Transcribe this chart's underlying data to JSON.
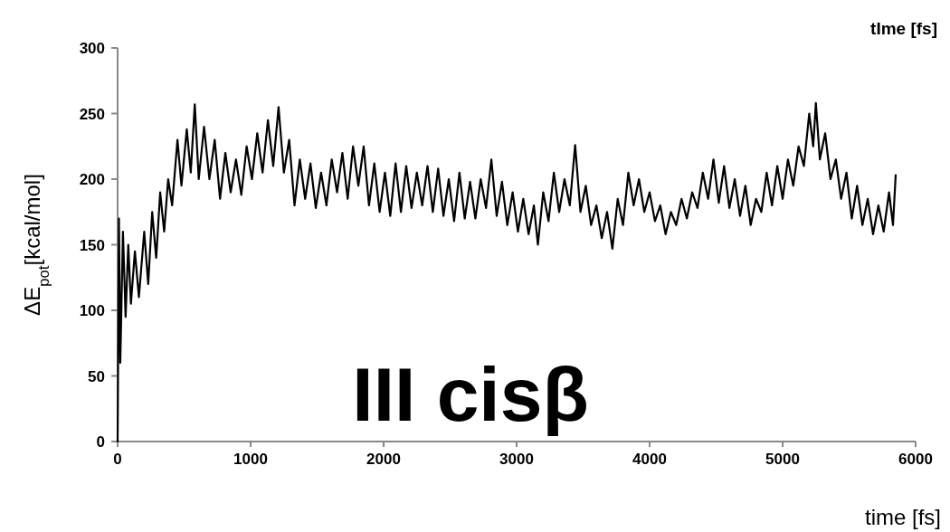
{
  "chart_data": {
    "type": "line",
    "xlabel": "time [fs]",
    "ylabel": "ΔE$_{pot}$[kcal/mol]",
    "annotations": [
      "tIme [fs]",
      "III cisβ"
    ],
    "xlim": [
      0,
      6000
    ],
    "xticks": [
      0,
      1000,
      2000,
      3000,
      4000,
      5000,
      6000
    ],
    "ylim": [
      0,
      300
    ],
    "yticks": [
      0,
      50,
      100,
      150,
      200,
      250,
      300
    ],
    "grid": false,
    "marker": "none",
    "line_style": "solid",
    "series": [
      {
        "color": "#000000",
        "x": [
          0,
          10,
          20,
          40,
          60,
          80,
          100,
          130,
          160,
          200,
          230,
          260,
          290,
          320,
          350,
          380,
          410,
          450,
          480,
          520,
          550,
          580,
          610,
          650,
          690,
          730,
          770,
          810,
          850,
          890,
          930,
          970,
          1010,
          1050,
          1090,
          1130,
          1170,
          1210,
          1250,
          1290,
          1330,
          1370,
          1410,
          1450,
          1490,
          1530,
          1570,
          1610,
          1650,
          1690,
          1730,
          1770,
          1810,
          1850,
          1890,
          1930,
          1970,
          2010,
          2050,
          2090,
          2130,
          2170,
          2210,
          2250,
          2290,
          2330,
          2370,
          2410,
          2450,
          2490,
          2530,
          2570,
          2610,
          2650,
          2690,
          2730,
          2770,
          2810,
          2850,
          2890,
          2930,
          2970,
          3010,
          3050,
          3090,
          3130,
          3160,
          3200,
          3240,
          3280,
          3320,
          3360,
          3400,
          3440,
          3480,
          3520,
          3560,
          3600,
          3640,
          3680,
          3720,
          3760,
          3800,
          3840,
          3880,
          3920,
          3960,
          4000,
          4040,
          4080,
          4120,
          4160,
          4200,
          4240,
          4280,
          4320,
          4360,
          4400,
          4440,
          4480,
          4520,
          4560,
          4600,
          4640,
          4680,
          4720,
          4760,
          4800,
          4840,
          4880,
          4920,
          4960,
          5000,
          5040,
          5080,
          5120,
          5160,
          5200,
          5230,
          5250,
          5280,
          5320,
          5360,
          5400,
          5440,
          5480,
          5520,
          5560,
          5600,
          5640,
          5680,
          5720,
          5760,
          5800,
          5830,
          5850
        ],
        "values": [
          0,
          170,
          60,
          160,
          95,
          150,
          105,
          145,
          110,
          160,
          120,
          175,
          140,
          190,
          160,
          200,
          180,
          230,
          195,
          238,
          205,
          257,
          200,
          240,
          200,
          230,
          185,
          220,
          190,
          215,
          188,
          225,
          200,
          235,
          205,
          245,
          210,
          255,
          205,
          230,
          180,
          215,
          185,
          212,
          178,
          205,
          180,
          215,
          190,
          220,
          185,
          225,
          195,
          225,
          180,
          212,
          175,
          205,
          172,
          212,
          175,
          210,
          178,
          205,
          180,
          210,
          175,
          208,
          172,
          200,
          168,
          205,
          170,
          198,
          170,
          200,
          178,
          215,
          172,
          198,
          165,
          190,
          160,
          185,
          158,
          180,
          150,
          190,
          168,
          205,
          175,
          200,
          180,
          226,
          175,
          195,
          165,
          180,
          155,
          175,
          147,
          185,
          165,
          205,
          180,
          200,
          175,
          190,
          168,
          180,
          158,
          175,
          165,
          185,
          170,
          190,
          178,
          205,
          185,
          215,
          182,
          210,
          178,
          200,
          172,
          195,
          165,
          185,
          175,
          205,
          180,
          210,
          185,
          215,
          195,
          225,
          210,
          250,
          225,
          258,
          215,
          235,
          200,
          215,
          185,
          205,
          170,
          195,
          165,
          185,
          158,
          180,
          160,
          190,
          165,
          203
        ]
      }
    ]
  }
}
